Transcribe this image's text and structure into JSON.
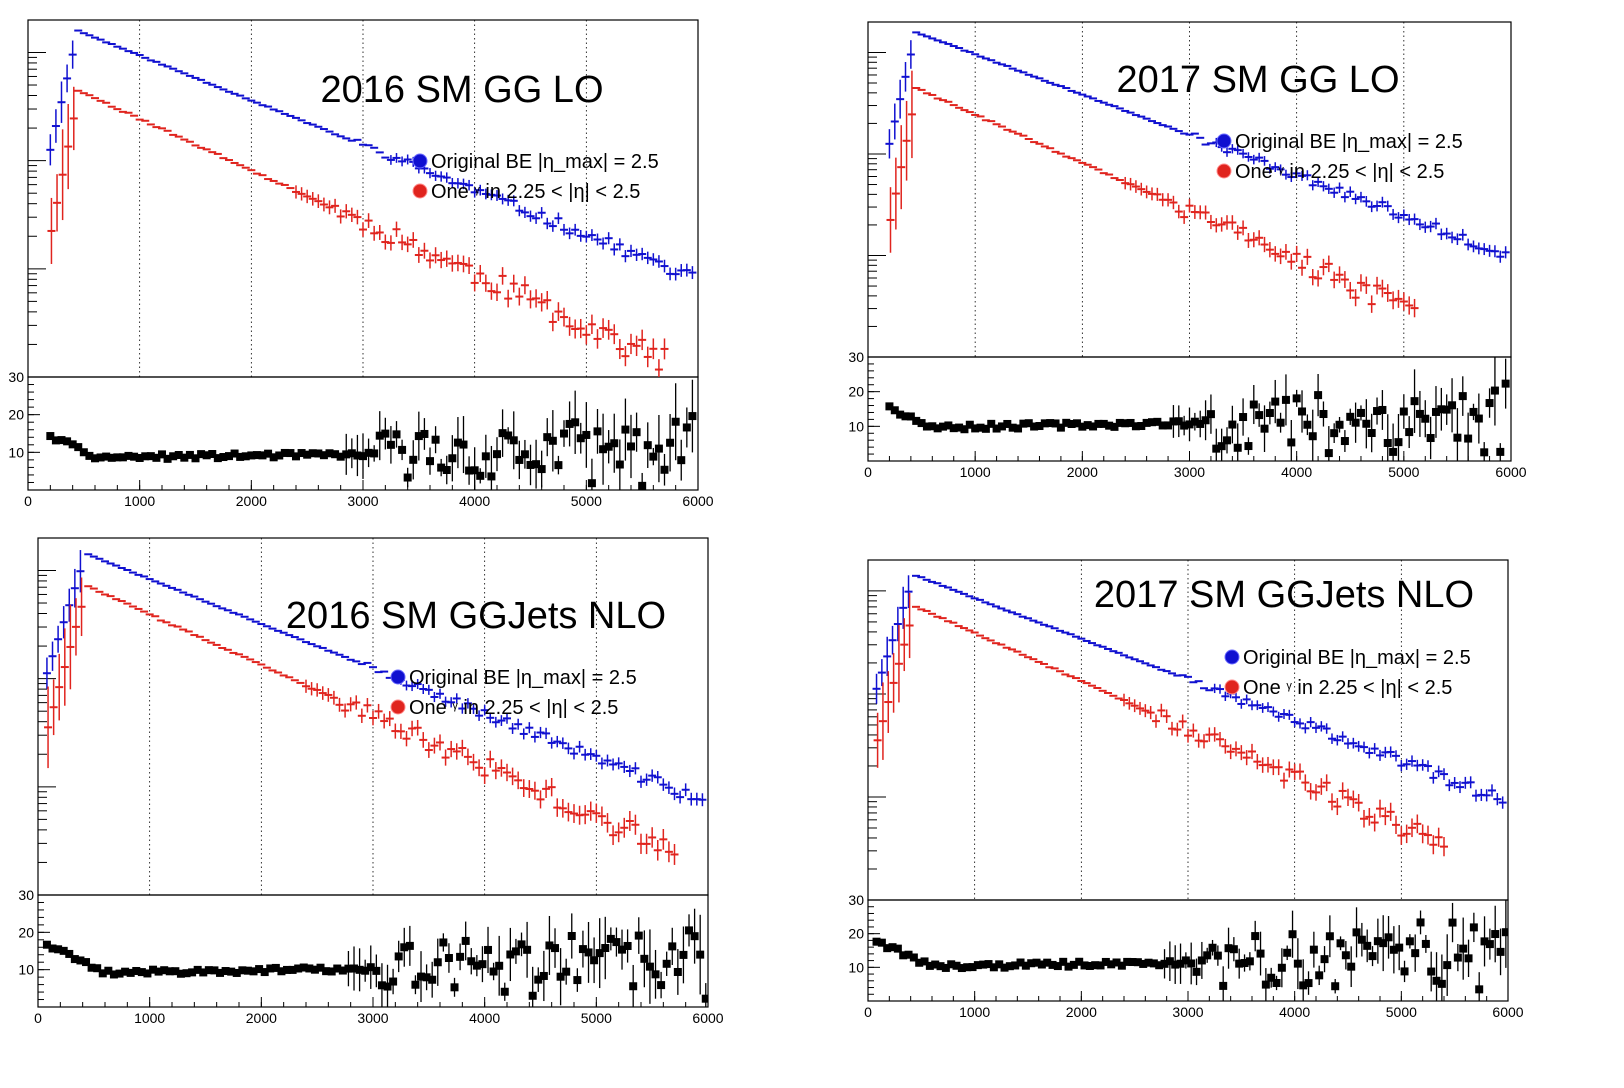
{
  "colors": {
    "blue": "#1010d0",
    "red": "#e0241e",
    "black": "#000000"
  },
  "legend": {
    "original": "Original BE |η_max| = 2.5",
    "one_prefix": "One",
    "one_gamma": "γ",
    "one_suffix": "in 2.25 < |η| < 2.5"
  },
  "chart_data": [
    {
      "type": "scatter",
      "title": "2016 SM GG LO",
      "x_ticks": [
        "0",
        "1000",
        "2000",
        "3000",
        "4000",
        "5000",
        "6000"
      ],
      "ratio_ticks": [
        "10",
        "20",
        "30"
      ],
      "xlim": [
        0,
        6000
      ],
      "ratio_ylim": [
        0,
        30
      ],
      "ylog": true,
      "grid_x": true,
      "legend_placement": "right",
      "upper_log": {
        "ylim_log": [
          0,
          3.3
        ],
        "blue_start": 3.2,
        "blue_slope": 2.3,
        "red_start": 2.65,
        "red_slope": 2.65,
        "red_cut": 5700,
        "blue_noise": 0.03,
        "red_noise": 0.09
      },
      "ratio": {
        "start": 8.5,
        "slope": 0.2,
        "noise": 2.5,
        "seed": 11
      }
    },
    {
      "type": "scatter",
      "title": "2017 SM GG LO",
      "x_ticks": [
        "0",
        "1000",
        "2000",
        "3000",
        "4000",
        "5000",
        "6000"
      ],
      "ratio_ticks": [
        "10",
        "20",
        "30"
      ],
      "xlim": [
        0,
        6000
      ],
      "ratio_ylim": [
        0,
        30
      ],
      "ylog": true,
      "grid_x": true,
      "legend_placement": "right",
      "upper_log": {
        "ylim_log": [
          0,
          3.3
        ],
        "blue_start": 3.2,
        "blue_slope": 2.2,
        "red_start": 2.65,
        "red_slope": 2.65,
        "red_cut": 5100,
        "blue_noise": 0.03,
        "red_noise": 0.09
      },
      "ratio": {
        "start": 9.5,
        "slope": 0.3,
        "noise": 3.0,
        "seed": 23
      }
    },
    {
      "type": "scatter",
      "title": "2016 SM GGJets NLO",
      "x_ticks": [
        "0",
        "1000",
        "2000",
        "3000",
        "4000",
        "5000",
        "6000"
      ],
      "ratio_ticks": [
        "10",
        "20",
        "30"
      ],
      "xlim": [
        0,
        6000
      ],
      "ratio_ylim": [
        0,
        30
      ],
      "ylog": true,
      "grid_x": true,
      "legend_placement": "right",
      "upper_log": {
        "ylim_log": [
          0,
          3.3
        ],
        "blue_start": 3.15,
        "blue_slope": 2.3,
        "red_start": 2.85,
        "red_slope": 2.6,
        "red_cut": 5700,
        "blue_noise": 0.03,
        "red_noise": 0.08
      },
      "ratio": {
        "start": 9.0,
        "slope": 0.25,
        "noise": 2.5,
        "seed": 37
      }
    },
    {
      "type": "scatter",
      "title": "2017 SM GGJets NLO",
      "x_ticks": [
        "0",
        "1000",
        "2000",
        "3000",
        "4000",
        "5000",
        "6000"
      ],
      "ratio_ticks": [
        "10",
        "20",
        "30"
      ],
      "xlim": [
        0,
        6000
      ],
      "ratio_ylim": [
        0,
        30
      ],
      "ylog": true,
      "grid_x": true,
      "legend_placement": "right",
      "upper_log": {
        "ylim_log": [
          0,
          3.3
        ],
        "blue_start": 3.15,
        "blue_slope": 2.2,
        "red_start": 2.85,
        "red_slope": 2.6,
        "red_cut": 5400,
        "blue_noise": 0.03,
        "red_noise": 0.08
      },
      "ratio": {
        "start": 10.0,
        "slope": 0.3,
        "noise": 3.0,
        "seed": 53
      }
    }
  ]
}
